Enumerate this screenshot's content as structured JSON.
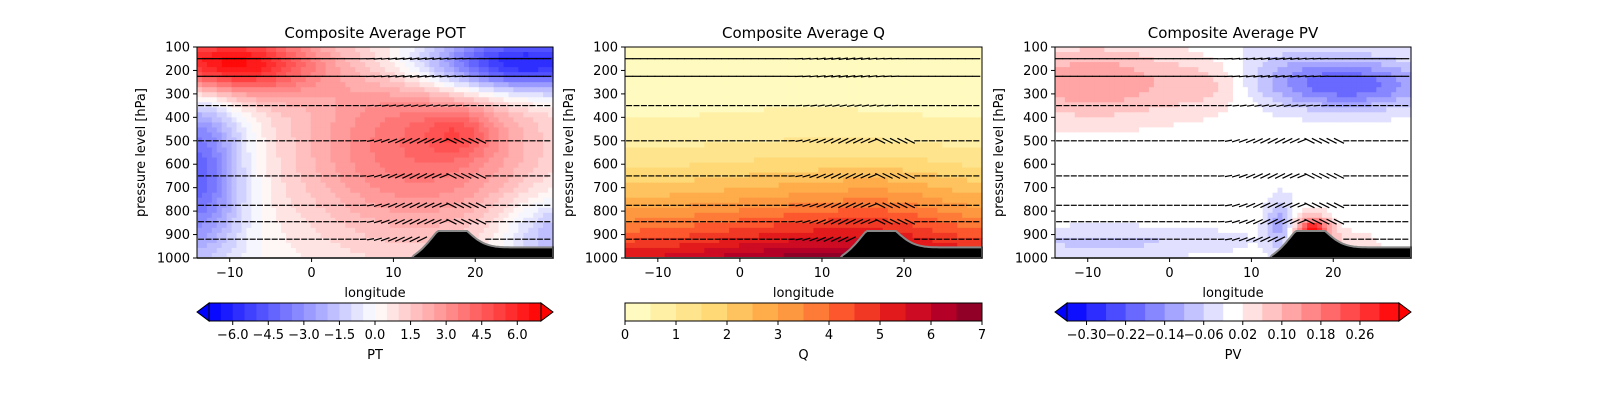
{
  "chart_data": [
    {
      "type": "heatmap",
      "title": "Composite Average POT",
      "xlabel": "longitude",
      "ylabel": "pressure level [hPa]",
      "xlim": [
        -14,
        29.5
      ],
      "ylim": [
        1000,
        100
      ],
      "x_ticks": [
        -10,
        0,
        10,
        20
      ],
      "y_ticks": [
        100,
        200,
        300,
        400,
        500,
        600,
        700,
        800,
        900,
        1000
      ],
      "field": "POT",
      "colormap": "bwr",
      "colorbar": {
        "label": "PT",
        "range": [
          -7.0,
          7.0
        ],
        "step": 0.5,
        "extend": "both",
        "tick_values": [
          -6.0,
          -4.5,
          -3.0,
          -1.5,
          0.0,
          1.5,
          3.0,
          4.5,
          6.0
        ],
        "tick_labels": [
          "−6.0",
          "−4.5",
          "−3.0",
          "−1.5",
          "0.0",
          "1.5",
          "3.0",
          "4.5",
          "6.0"
        ]
      }
    },
    {
      "type": "heatmap",
      "title": "Composite Average Q",
      "xlabel": "longitude",
      "ylabel": "pressure level [hPa]",
      "xlim": [
        -14,
        29.5
      ],
      "ylim": [
        1000,
        100
      ],
      "x_ticks": [
        -10,
        0,
        10,
        20
      ],
      "y_ticks": [
        100,
        200,
        300,
        400,
        500,
        600,
        700,
        800,
        900,
        1000
      ],
      "field": "Q",
      "colormap": "YlOrRd",
      "colorbar": {
        "label": "Q",
        "range": [
          0,
          7
        ],
        "step": 0.5,
        "extend": "neither",
        "tick_values": [
          0,
          1,
          2,
          3,
          4,
          5,
          6,
          7
        ],
        "tick_labels": [
          "0",
          "1",
          "2",
          "3",
          "4",
          "5",
          "6",
          "7"
        ]
      }
    },
    {
      "type": "heatmap",
      "title": "Composite Average PV",
      "xlabel": "longitude",
      "ylabel": "pressure level [hPa]",
      "xlim": [
        -14,
        29.5
      ],
      "ylim": [
        1000,
        100
      ],
      "x_ticks": [
        -10,
        0,
        10,
        20
      ],
      "y_ticks": [
        100,
        200,
        300,
        400,
        500,
        600,
        700,
        800,
        900,
        1000
      ],
      "field": "PV",
      "colormap": "bwr",
      "colorbar": {
        "label": "PV",
        "range": [
          -0.34,
          0.34
        ],
        "step": 0.04,
        "extend": "both",
        "tick_values": [
          -0.3,
          -0.22,
          -0.14,
          -0.06,
          0.02,
          0.1,
          0.18,
          0.26
        ],
        "tick_labels": [
          "−0.30",
          "−0.22",
          "−0.14",
          "−0.06",
          "0.02",
          "0.10",
          "0.18",
          "0.26"
        ]
      }
    }
  ]
}
